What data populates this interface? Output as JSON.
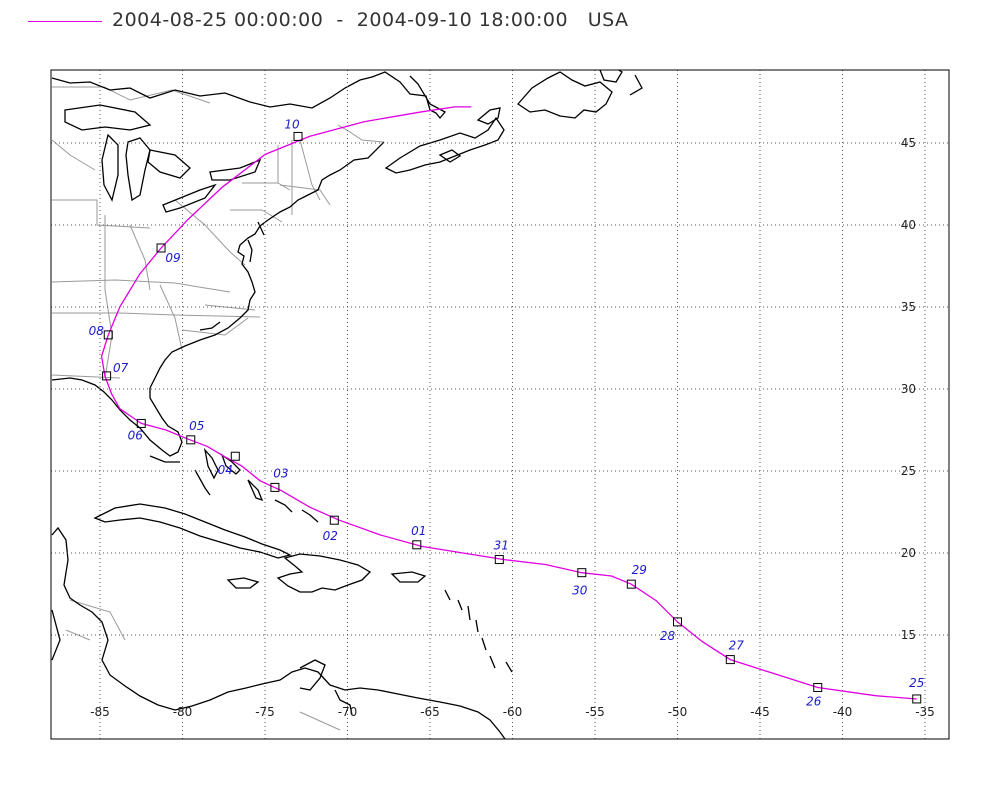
{
  "header": {
    "title": "2004-08-25 00:00:00  -  2004-09-10 18:00:00   USA",
    "track_color": "#e100e1"
  },
  "map": {
    "lon_range": [
      -85,
      -35
    ],
    "lat_range": [
      11,
      50
    ],
    "lon_ticks": [
      {
        "value": -85,
        "label": "-85"
      },
      {
        "value": -80,
        "label": "-80"
      },
      {
        "value": -75,
        "label": "-75"
      },
      {
        "value": -70,
        "label": "-70"
      },
      {
        "value": -65,
        "label": "-65"
      },
      {
        "value": -60,
        "label": "-60"
      },
      {
        "value": -55,
        "label": "-55"
      },
      {
        "value": -50,
        "label": "-50"
      },
      {
        "value": -45,
        "label": "-45"
      },
      {
        "value": -40,
        "label": "-40"
      },
      {
        "value": -35,
        "label": "-35"
      }
    ],
    "lat_ticks": [
      {
        "value": 15,
        "label": "15"
      },
      {
        "value": 20,
        "label": "20"
      },
      {
        "value": 25,
        "label": "25"
      },
      {
        "value": 30,
        "label": "30"
      },
      {
        "value": 35,
        "label": "35"
      },
      {
        "value": 40,
        "label": "40"
      },
      {
        "value": 45,
        "label": "45"
      }
    ],
    "grid": true,
    "track": [
      [
        -35.5,
        11.1
      ],
      [
        -38,
        11.3
      ],
      [
        -41.5,
        11.8
      ],
      [
        -44,
        12.6
      ],
      [
        -46.8,
        13.5
      ],
      [
        -48.5,
        14.6
      ],
      [
        -50,
        15.8
      ],
      [
        -51.3,
        17.1
      ],
      [
        -52.8,
        18.1
      ],
      [
        -54,
        18.6
      ],
      [
        -55.8,
        18.8
      ],
      [
        -58,
        19.3
      ],
      [
        -60.5,
        19.6
      ],
      [
        -63,
        20
      ],
      [
        -65.5,
        20.4
      ],
      [
        -68,
        21.1
      ],
      [
        -70.5,
        22
      ],
      [
        -72.3,
        22.8
      ],
      [
        -74,
        23.8
      ],
      [
        -75.3,
        24.4
      ],
      [
        -76.4,
        25.3
      ],
      [
        -77.5,
        25.9
      ],
      [
        -78.5,
        26.5
      ],
      [
        -79.8,
        27
      ],
      [
        -81,
        27.5
      ],
      [
        -82.5,
        27.9
      ],
      [
        -83.8,
        28.8
      ],
      [
        -84.3,
        29.7
      ],
      [
        -84.7,
        30.8
      ],
      [
        -84.9,
        32
      ],
      [
        -84.5,
        33.3
      ],
      [
        -83.8,
        35
      ],
      [
        -82.6,
        37
      ],
      [
        -81.3,
        38.6
      ],
      [
        -79.7,
        40.3
      ],
      [
        -77.6,
        42.3
      ],
      [
        -75,
        44.3
      ],
      [
        -72.3,
        45.4
      ],
      [
        -69,
        46.3
      ],
      [
        -65.5,
        46.9
      ],
      [
        -63.5,
        47.2
      ],
      [
        -62.5,
        47.2
      ]
    ],
    "daily_positions": [
      {
        "day": "25",
        "lon": -35.5,
        "lat": 11.1
      },
      {
        "day": "26",
        "lon": -41.5,
        "lat": 11.8
      },
      {
        "day": "27",
        "lon": -46.8,
        "lat": 13.5
      },
      {
        "day": "28",
        "lon": -50.0,
        "lat": 15.8
      },
      {
        "day": "29",
        "lon": -52.8,
        "lat": 18.1
      },
      {
        "day": "30",
        "lon": -55.8,
        "lat": 18.8
      },
      {
        "day": "31",
        "lon": -60.8,
        "lat": 19.6
      },
      {
        "day": "01",
        "lon": -65.8,
        "lat": 20.5
      },
      {
        "day": "02",
        "lon": -70.8,
        "lat": 22.0
      },
      {
        "day": "03",
        "lon": -74.4,
        "lat": 24.0
      },
      {
        "day": "04",
        "lon": -76.8,
        "lat": 25.9
      },
      {
        "day": "05",
        "lon": -79.5,
        "lat": 26.9
      },
      {
        "day": "06",
        "lon": -82.5,
        "lat": 27.9
      },
      {
        "day": "07",
        "lon": -84.6,
        "lat": 30.8
      },
      {
        "day": "08",
        "lon": -84.5,
        "lat": 33.3
      },
      {
        "day": "09",
        "lon": -81.3,
        "lat": 38.6
      },
      {
        "day": "10",
        "lon": -73.0,
        "lat": 45.4
      }
    ]
  }
}
